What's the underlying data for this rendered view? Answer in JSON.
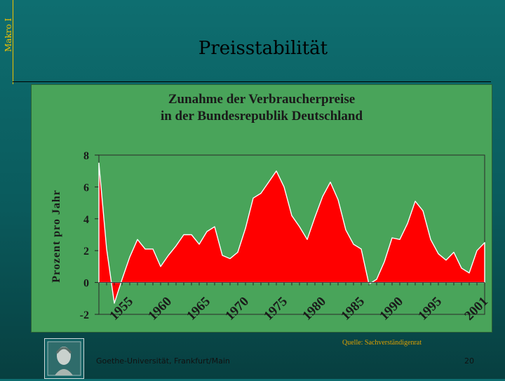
{
  "slide": {
    "side_label": "Makro I",
    "title": "Preisstabilität",
    "source": "Quelle: Sachverständigenrat",
    "footer_left": "Goethe-Universität, Frankfurt/Main",
    "page_number": "20"
  },
  "chart_data": {
    "type": "area",
    "title": "Zunahme der Verbraucherpreise in der Bundesrepublik Deutschland",
    "title_lines": [
      "Zunahme der Verbraucherpreise",
      "in der Bundesrepublik Deutschland"
    ],
    "xlabel": "",
    "ylabel": "Prozent pro Jahr",
    "ylim": [
      -2,
      8
    ],
    "xlim": [
      1951,
      2001
    ],
    "y_ticks": [
      -2,
      0,
      2,
      4,
      6,
      8
    ],
    "x_tick_labels": [
      {
        "year": 1955,
        "label": "1955"
      },
      {
        "year": 1960,
        "label": "1960"
      },
      {
        "year": 1965,
        "label": "1965"
      },
      {
        "year": 1970,
        "label": "1970"
      },
      {
        "year": 1975,
        "label": "1975"
      },
      {
        "year": 1980,
        "label": "1980"
      },
      {
        "year": 1985,
        "label": "1985"
      },
      {
        "year": 1990,
        "label": "1990"
      },
      {
        "year": 1995,
        "label": "1995"
      },
      {
        "year": 2001,
        "label": "2001"
      }
    ],
    "grid": false,
    "fill_color": "#ff0000",
    "background_color": "#49a45a",
    "series": [
      {
        "x": [
          1951,
          1952,
          1953,
          1954,
          1955,
          1956,
          1957,
          1958,
          1959,
          1960,
          1961,
          1962,
          1963,
          1964,
          1965,
          1966,
          1967,
          1968,
          1969,
          1970,
          1971,
          1972,
          1973,
          1974,
          1975,
          1976,
          1977,
          1978,
          1979,
          1980,
          1981,
          1982,
          1983,
          1984,
          1985,
          1986,
          1987,
          1988,
          1989,
          1990,
          1991,
          1992,
          1993,
          1994,
          1995,
          1996,
          1997,
          1998,
          1999,
          2000,
          2001
        ],
        "values": [
          7.5,
          2.1,
          -1.3,
          0.2,
          1.6,
          2.7,
          2.1,
          2.1,
          1.0,
          1.7,
          2.3,
          3.0,
          3.0,
          2.4,
          3.2,
          3.5,
          1.7,
          1.5,
          1.9,
          3.4,
          5.3,
          5.6,
          6.3,
          7.0,
          6.0,
          4.2,
          3.5,
          2.7,
          4.1,
          5.4,
          6.3,
          5.2,
          3.3,
          2.4,
          2.1,
          -0.1,
          0.2,
          1.3,
          2.8,
          2.7,
          3.7,
          5.1,
          4.5,
          2.7,
          1.8,
          1.4,
          1.9,
          0.9,
          0.6,
          2.0,
          2.5
        ]
      }
    ]
  }
}
